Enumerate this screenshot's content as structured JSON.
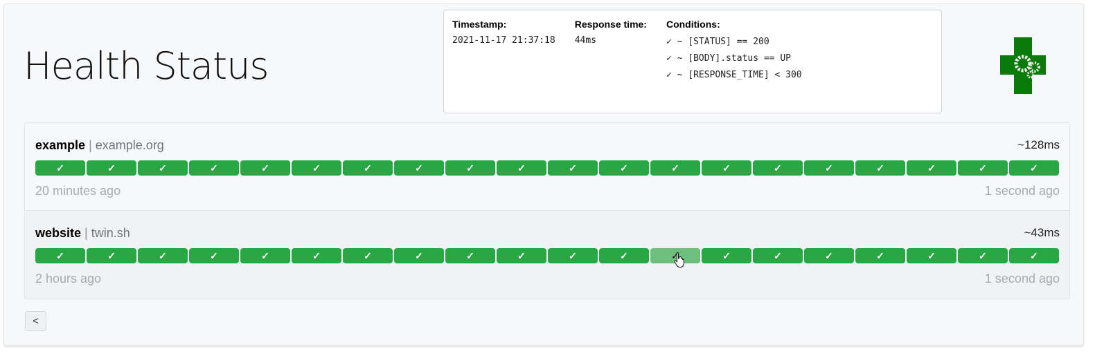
{
  "page": {
    "title": "Health Status",
    "back_label": "<"
  },
  "services": [
    {
      "name": "example",
      "separator": "|",
      "host": "example.org",
      "avg_response": "~128ms",
      "oldest": "20 minutes ago",
      "newest": "1 second ago",
      "results": [
        "✓",
        "✓",
        "✓",
        "✓",
        "✓",
        "✓",
        "✓",
        "✓",
        "✓",
        "✓",
        "✓",
        "✓",
        "✓",
        "✓",
        "✓",
        "✓",
        "✓",
        "✓",
        "✓",
        "✓"
      ]
    },
    {
      "name": "website",
      "separator": "|",
      "host": "twin.sh",
      "avg_response": "~43ms",
      "oldest": "2 hours ago",
      "newest": "1 second ago",
      "results": [
        "✓",
        "✓",
        "✓",
        "✓",
        "✓",
        "✓",
        "✓",
        "✓",
        "✓",
        "✓",
        "✓",
        "✓",
        "✓",
        "✓",
        "✓",
        "✓",
        "✓",
        "✓",
        "✓",
        "✓"
      ]
    }
  ],
  "tooltip": {
    "timestamp_label": "Timestamp:",
    "timestamp": "2021-11-17 21:37:18",
    "response_time_label": "Response time:",
    "response_time": "44ms",
    "conditions_label": "Conditions:",
    "conditions": [
      "✓ ~ [STATUS] == 200",
      "✓ ~ [BODY].status == UP",
      "✓ ~ [RESPONSE_TIME] < 300"
    ]
  },
  "colors": {
    "success": "#28a745",
    "logo": "#0a7a0a"
  }
}
